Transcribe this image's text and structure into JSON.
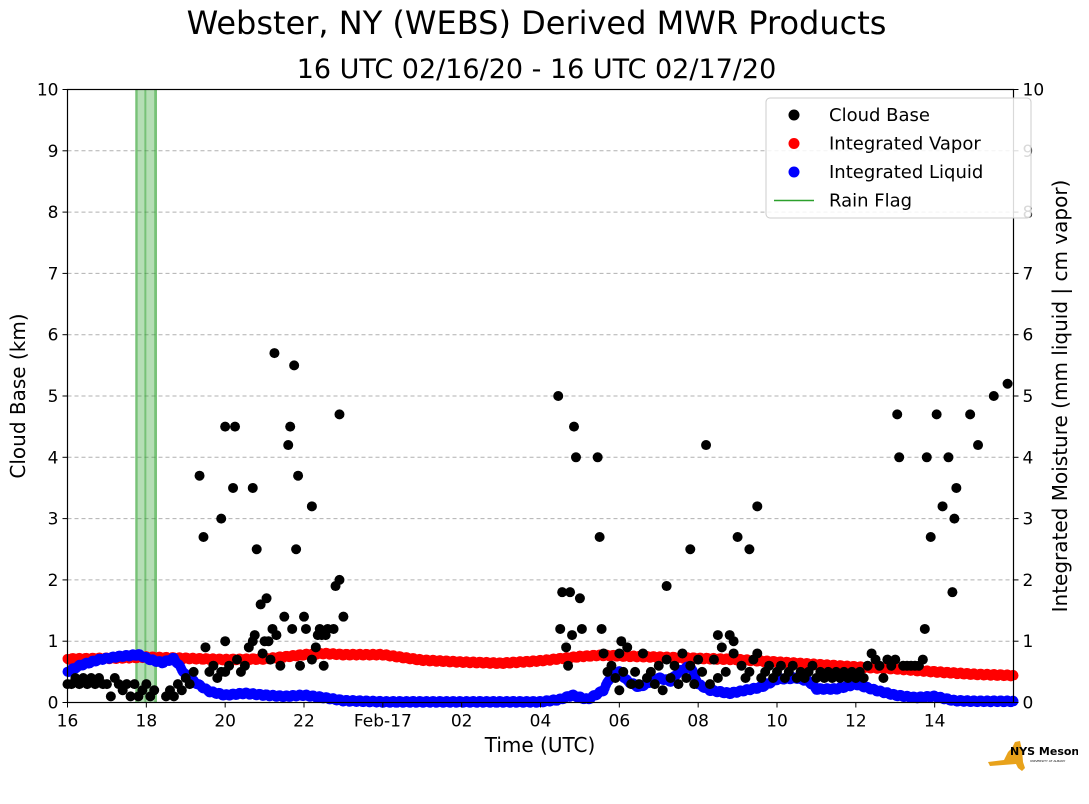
{
  "title": "Webster, NY (WEBS) Derived MWR Products",
  "subtitle": "16 UTC 02/16/20 - 16 UTC 02/17/20",
  "logo": {
    "text": "NYS Mesonet",
    "subtext": "UNIVERSITY AT ALBANY",
    "icon": "new-york-state-shape"
  },
  "chart_data": {
    "type": "scatter",
    "xlabel": "Time (UTC)",
    "ylabel_left": "Cloud Base (km)",
    "ylabel_right": "Integrated Moisture (mm liquid | cm vapor)",
    "xlim": [
      16,
      40
    ],
    "ylim": [
      0,
      10
    ],
    "x_units": "hours since 00 UTC 02/16/20",
    "x_ticks": [
      {
        "x": 16,
        "label": "16"
      },
      {
        "x": 18,
        "label": "18"
      },
      {
        "x": 20,
        "label": "20"
      },
      {
        "x": 22,
        "label": "22"
      },
      {
        "x": 24,
        "label": "Feb-17"
      },
      {
        "x": 26,
        "label": "02"
      },
      {
        "x": 28,
        "label": "04"
      },
      {
        "x": 30,
        "label": "06"
      },
      {
        "x": 32,
        "label": "08"
      },
      {
        "x": 34,
        "label": "10"
      },
      {
        "x": 36,
        "label": "12"
      },
      {
        "x": 38,
        "label": "14"
      }
    ],
    "y_ticks": [
      "0",
      "1",
      "2",
      "3",
      "4",
      "5",
      "6",
      "7",
      "8",
      "9",
      "10"
    ],
    "grid": "horizontal dashed",
    "legend_position": "top-right",
    "legend": [
      {
        "label": "Cloud Base",
        "marker": "dot",
        "color": "#000000"
      },
      {
        "label": "Integrated Vapor",
        "marker": "dot",
        "color": "#ff0000"
      },
      {
        "label": "Integrated Liquid",
        "marker": "dot",
        "color": "#0000ff"
      },
      {
        "label": "Rain Flag",
        "marker": "line",
        "color": "#2ca02c"
      }
    ],
    "rain_flag": [
      {
        "x": 17.8,
        "spans": [
          [
            17.72,
            17.78
          ],
          [
            17.95,
            18.0
          ],
          [
            18.2,
            18.27
          ]
        ]
      }
    ],
    "series": [
      {
        "name": "Cloud Base",
        "color": "#000000",
        "points": [
          [
            16.0,
            0.3
          ],
          [
            16.1,
            0.3
          ],
          [
            16.2,
            0.4
          ],
          [
            16.3,
            0.3
          ],
          [
            16.4,
            0.4
          ],
          [
            16.5,
            0.3
          ],
          [
            16.6,
            0.4
          ],
          [
            16.7,
            0.3
          ],
          [
            16.8,
            0.4
          ],
          [
            16.9,
            0.3
          ],
          [
            17.0,
            0.3
          ],
          [
            17.1,
            0.1
          ],
          [
            17.2,
            0.4
          ],
          [
            17.3,
            0.3
          ],
          [
            17.4,
            0.2
          ],
          [
            17.5,
            0.3
          ],
          [
            17.6,
            0.1
          ],
          [
            17.7,
            0.3
          ],
          [
            17.8,
            0.1
          ],
          [
            17.9,
            0.2
          ],
          [
            18.0,
            0.3
          ],
          [
            18.1,
            0.1
          ],
          [
            18.2,
            0.2
          ],
          [
            18.5,
            0.1
          ],
          [
            18.6,
            0.2
          ],
          [
            18.7,
            0.1
          ],
          [
            18.8,
            0.3
          ],
          [
            18.9,
            0.2
          ],
          [
            19.0,
            0.4
          ],
          [
            19.1,
            0.3
          ],
          [
            19.2,
            0.5
          ],
          [
            19.35,
            3.7
          ],
          [
            19.45,
            2.7
          ],
          [
            19.5,
            0.9
          ],
          [
            19.6,
            0.5
          ],
          [
            19.7,
            0.6
          ],
          [
            19.8,
            0.4
          ],
          [
            19.9,
            0.5
          ],
          [
            20.0,
            0.5
          ],
          [
            20.1,
            0.6
          ],
          [
            19.9,
            3.0
          ],
          [
            20.0,
            1.0
          ],
          [
            20.0,
            4.5
          ],
          [
            20.2,
            3.5
          ],
          [
            20.25,
            4.5
          ],
          [
            20.3,
            0.7
          ],
          [
            20.4,
            0.5
          ],
          [
            20.5,
            0.6
          ],
          [
            20.6,
            0.9
          ],
          [
            20.7,
            1.0
          ],
          [
            20.7,
            3.5
          ],
          [
            20.75,
            1.1
          ],
          [
            20.8,
            2.5
          ],
          [
            20.9,
            1.6
          ],
          [
            20.95,
            0.8
          ],
          [
            21.0,
            1.0
          ],
          [
            21.05,
            1.7
          ],
          [
            21.1,
            1.0
          ],
          [
            21.15,
            0.7
          ],
          [
            21.2,
            1.2
          ],
          [
            21.25,
            5.7
          ],
          [
            21.3,
            1.1
          ],
          [
            21.4,
            0.6
          ],
          [
            21.5,
            1.4
          ],
          [
            21.6,
            4.2
          ],
          [
            21.65,
            4.5
          ],
          [
            21.7,
            1.2
          ],
          [
            21.75,
            5.5
          ],
          [
            21.8,
            2.5
          ],
          [
            21.85,
            3.7
          ],
          [
            21.9,
            0.6
          ],
          [
            22.0,
            1.4
          ],
          [
            22.05,
            1.2
          ],
          [
            22.2,
            0.7
          ],
          [
            22.2,
            3.2
          ],
          [
            22.3,
            0.9
          ],
          [
            22.35,
            1.1
          ],
          [
            22.4,
            1.2
          ],
          [
            22.45,
            1.1
          ],
          [
            22.5,
            0.6
          ],
          [
            22.55,
            1.1
          ],
          [
            22.6,
            1.2
          ],
          [
            22.75,
            1.2
          ],
          [
            22.8,
            1.9
          ],
          [
            22.9,
            4.7
          ],
          [
            22.9,
            2.0
          ],
          [
            23.0,
            1.4
          ],
          [
            28.45,
            5.0
          ],
          [
            28.5,
            1.2
          ],
          [
            28.55,
            1.8
          ],
          [
            28.65,
            0.9
          ],
          [
            28.7,
            0.6
          ],
          [
            28.75,
            1.8
          ],
          [
            28.8,
            1.1
          ],
          [
            28.85,
            4.5
          ],
          [
            28.9,
            4.0
          ],
          [
            29.0,
            1.7
          ],
          [
            29.05,
            1.2
          ],
          [
            29.45,
            4.0
          ],
          [
            29.5,
            2.7
          ],
          [
            29.55,
            1.2
          ],
          [
            29.6,
            0.8
          ],
          [
            29.7,
            0.5
          ],
          [
            29.8,
            0.6
          ],
          [
            29.9,
            0.4
          ],
          [
            30.0,
            0.2
          ],
          [
            30.0,
            0.8
          ],
          [
            30.05,
            1.0
          ],
          [
            30.1,
            0.5
          ],
          [
            30.2,
            0.9
          ],
          [
            30.3,
            0.3
          ],
          [
            30.4,
            0.5
          ],
          [
            30.5,
            0.3
          ],
          [
            30.6,
            0.8
          ],
          [
            30.7,
            0.4
          ],
          [
            30.8,
            0.5
          ],
          [
            30.9,
            0.3
          ],
          [
            31.0,
            0.6
          ],
          [
            31.1,
            0.2
          ],
          [
            31.2,
            0.7
          ],
          [
            31.2,
            1.9
          ],
          [
            31.3,
            0.4
          ],
          [
            31.4,
            0.6
          ],
          [
            31.5,
            0.3
          ],
          [
            31.6,
            0.8
          ],
          [
            31.7,
            0.4
          ],
          [
            31.8,
            0.6
          ],
          [
            31.8,
            2.5
          ],
          [
            31.9,
            0.3
          ],
          [
            32.0,
            0.7
          ],
          [
            32.1,
            0.5
          ],
          [
            32.2,
            4.2
          ],
          [
            32.3,
            0.3
          ],
          [
            32.4,
            0.7
          ],
          [
            32.5,
            0.4
          ],
          [
            32.5,
            1.1
          ],
          [
            32.6,
            0.9
          ],
          [
            32.7,
            0.5
          ],
          [
            32.8,
            1.1
          ],
          [
            32.9,
            0.8
          ],
          [
            32.9,
            1.0
          ],
          [
            33.0,
            2.7
          ],
          [
            33.1,
            0.6
          ],
          [
            33.2,
            0.4
          ],
          [
            33.3,
            2.5
          ],
          [
            33.3,
            0.5
          ],
          [
            33.4,
            0.7
          ],
          [
            33.5,
            0.8
          ],
          [
            33.5,
            3.2
          ],
          [
            33.6,
            0.4
          ],
          [
            33.7,
            0.5
          ],
          [
            33.8,
            0.6
          ],
          [
            33.9,
            0.4
          ],
          [
            34.0,
            0.5
          ],
          [
            34.1,
            0.6
          ],
          [
            34.2,
            0.4
          ],
          [
            34.3,
            0.5
          ],
          [
            34.4,
            0.6
          ],
          [
            34.5,
            0.4
          ],
          [
            34.6,
            0.5
          ],
          [
            34.7,
            0.4
          ],
          [
            34.8,
            0.5
          ],
          [
            34.9,
            0.6
          ],
          [
            35.0,
            0.4
          ],
          [
            35.1,
            0.5
          ],
          [
            35.2,
            0.4
          ],
          [
            35.3,
            0.5
          ],
          [
            35.4,
            0.4
          ],
          [
            35.5,
            0.5
          ],
          [
            35.6,
            0.4
          ],
          [
            35.7,
            0.5
          ],
          [
            35.8,
            0.4
          ],
          [
            35.9,
            0.5
          ],
          [
            36.0,
            0.4
          ],
          [
            36.1,
            0.5
          ],
          [
            36.2,
            0.4
          ],
          [
            36.3,
            0.6
          ],
          [
            36.4,
            0.8
          ],
          [
            36.5,
            0.7
          ],
          [
            36.6,
            0.6
          ],
          [
            36.7,
            0.4
          ],
          [
            36.8,
            0.7
          ],
          [
            36.9,
            0.6
          ],
          [
            37.0,
            0.7
          ],
          [
            37.05,
            4.7
          ],
          [
            37.1,
            4.0
          ],
          [
            37.2,
            0.6
          ],
          [
            37.3,
            0.6
          ],
          [
            37.4,
            0.6
          ],
          [
            37.5,
            0.6
          ],
          [
            37.6,
            0.6
          ],
          [
            37.7,
            0.7
          ],
          [
            37.75,
            1.2
          ],
          [
            37.8,
            4.0
          ],
          [
            37.9,
            2.7
          ],
          [
            38.05,
            4.7
          ],
          [
            38.2,
            3.2
          ],
          [
            38.35,
            4.0
          ],
          [
            38.45,
            1.8
          ],
          [
            38.5,
            3.0
          ],
          [
            38.55,
            3.5
          ],
          [
            38.9,
            4.7
          ],
          [
            39.1,
            4.2
          ],
          [
            39.5,
            5.0
          ],
          [
            39.85,
            5.2
          ]
        ]
      },
      {
        "name": "Integrated Vapor",
        "color": "#ff0000",
        "points": [
          [
            16.0,
            0.71
          ],
          [
            17.0,
            0.72
          ],
          [
            18.0,
            0.74
          ],
          [
            19.0,
            0.72
          ],
          [
            20.0,
            0.7
          ],
          [
            21.0,
            0.71
          ],
          [
            22.0,
            0.78
          ],
          [
            22.5,
            0.8
          ],
          [
            23.0,
            0.78
          ],
          [
            24.0,
            0.78
          ],
          [
            25.0,
            0.69
          ],
          [
            26.0,
            0.66
          ],
          [
            27.0,
            0.64
          ],
          [
            28.0,
            0.68
          ],
          [
            29.0,
            0.75
          ],
          [
            29.5,
            0.77
          ],
          [
            30.0,
            0.76
          ],
          [
            31.0,
            0.74
          ],
          [
            32.0,
            0.72
          ],
          [
            33.0,
            0.7
          ],
          [
            34.0,
            0.66
          ],
          [
            35.0,
            0.62
          ],
          [
            36.0,
            0.58
          ],
          [
            37.0,
            0.55
          ],
          [
            38.0,
            0.5
          ],
          [
            39.0,
            0.46
          ],
          [
            40.0,
            0.44
          ]
        ]
      },
      {
        "name": "Integrated Liquid",
        "color": "#0000ff",
        "points": [
          [
            16.0,
            0.5
          ],
          [
            16.3,
            0.6
          ],
          [
            16.8,
            0.7
          ],
          [
            17.3,
            0.75
          ],
          [
            17.8,
            0.78
          ],
          [
            18.1,
            0.7
          ],
          [
            18.4,
            0.65
          ],
          [
            18.7,
            0.72
          ],
          [
            19.0,
            0.45
          ],
          [
            19.3,
            0.3
          ],
          [
            19.6,
            0.18
          ],
          [
            20.0,
            0.12
          ],
          [
            20.5,
            0.15
          ],
          [
            21.0,
            0.12
          ],
          [
            21.5,
            0.1
          ],
          [
            22.0,
            0.12
          ],
          [
            22.5,
            0.08
          ],
          [
            23.0,
            0.03
          ],
          [
            24.0,
            0.01
          ],
          [
            26.0,
            0.01
          ],
          [
            28.0,
            0.01
          ],
          [
            28.5,
            0.05
          ],
          [
            28.8,
            0.12
          ],
          [
            29.2,
            0.05
          ],
          [
            29.6,
            0.2
          ],
          [
            29.8,
            0.45
          ],
          [
            30.0,
            0.5
          ],
          [
            30.2,
            0.35
          ],
          [
            30.5,
            0.25
          ],
          [
            31.0,
            0.4
          ],
          [
            31.3,
            0.35
          ],
          [
            31.5,
            0.5
          ],
          [
            31.8,
            0.6
          ],
          [
            32.0,
            0.3
          ],
          [
            32.3,
            0.2
          ],
          [
            32.8,
            0.15
          ],
          [
            33.2,
            0.2
          ],
          [
            33.6,
            0.25
          ],
          [
            34.0,
            0.38
          ],
          [
            34.5,
            0.4
          ],
          [
            34.8,
            0.35
          ],
          [
            35.0,
            0.22
          ],
          [
            35.5,
            0.22
          ],
          [
            36.0,
            0.3
          ],
          [
            36.5,
            0.2
          ],
          [
            37.0,
            0.12
          ],
          [
            37.5,
            0.08
          ],
          [
            38.0,
            0.1
          ],
          [
            38.5,
            0.03
          ],
          [
            39.0,
            0.02
          ],
          [
            40.0,
            0.02
          ]
        ]
      }
    ]
  }
}
